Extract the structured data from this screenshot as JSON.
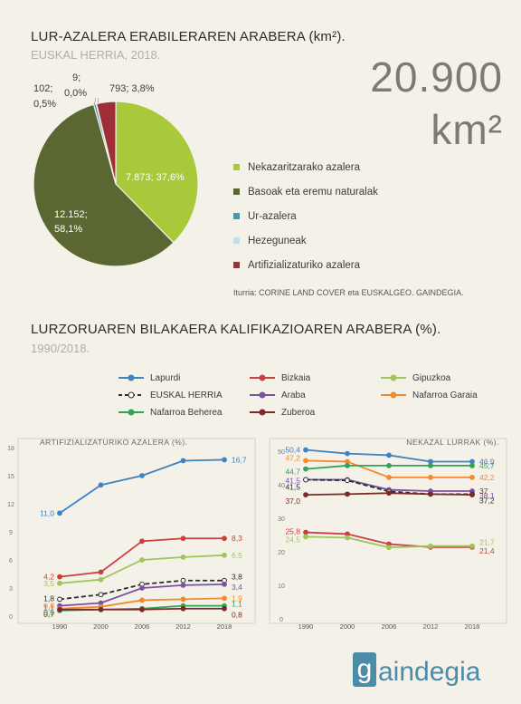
{
  "header": {
    "title": "LUR-AZALERA ERABILERAREN ARABERA (km²).",
    "subtitle": "EUSKAL HERRIA, 2018.",
    "total_number": "20.900",
    "total_unit": "km²"
  },
  "pie_labels": {
    "nek": "7.873; 37,6%",
    "bas_1": "12.152;",
    "bas_2": "58,1%",
    "ur_1": "102;",
    "ur_2": "0,5%",
    "hez_1": "9;",
    "hez_2": "0,0%",
    "art": "793; 3,8%"
  },
  "source": "Iturria: CORINE LAND COVER eta EUSKALGEO. GAINDEGIA.",
  "section2": {
    "title": "LURZORUAREN BILAKAERA KALIFIKAZIOAREN ARABERA (%).",
    "subtitle": "1990/2018."
  },
  "legend2": [
    {
      "name": "Lapurdi",
      "color": "#3f83c2",
      "dashed": false
    },
    {
      "name": "Bizkaia",
      "color": "#c9403e",
      "dashed": false
    },
    {
      "name": "Gipuzkoa",
      "color": "#9fc55b",
      "dashed": false
    },
    {
      "name": "EUSKAL HERRIA",
      "color": "#2c2c2c",
      "dashed": true
    },
    {
      "name": "Araba",
      "color": "#7e50a0",
      "dashed": false
    },
    {
      "name": "Nafarroa Garaia",
      "color": "#f08a2c",
      "dashed": false
    },
    {
      "name": "Nafarroa Beherea",
      "color": "#33a355",
      "dashed": false
    },
    {
      "name": "Zuberoa",
      "color": "#7a2a28",
      "dashed": false
    }
  ],
  "logo": {
    "letter": "g",
    "text": "aindegia"
  },
  "chart_data": [
    {
      "type": "pie",
      "categories": [
        "Nekazaritzarako azalera",
        "Basoak eta eremu naturalak",
        "Ur-azalera",
        "Hezeguneak",
        "Artifizializaturiko azalera"
      ],
      "values": [
        7873,
        12152,
        102,
        9,
        793
      ],
      "percent": [
        37.6,
        58.1,
        0.5,
        0.0,
        3.8
      ],
      "colors": [
        "#a8c93a",
        "#5a6732",
        "#4a98b0",
        "#bfe0e6",
        "#9e2f37"
      ],
      "legend": "right"
    },
    {
      "type": "line",
      "title": "ARTIFIZIALIZATURIKO AZALERA (%).",
      "x": [
        1990,
        2000,
        2006,
        2012,
        2018
      ],
      "ylim": [
        0,
        18
      ],
      "yticks": [
        0,
        3,
        6,
        9,
        12,
        15,
        18
      ],
      "grid": false,
      "series": [
        {
          "name": "Lapurdi",
          "values": [
            11.0,
            14.0,
            15.0,
            16.6,
            16.7
          ],
          "start_label": "11,0",
          "end_label": "16,7"
        },
        {
          "name": "Bizkaia",
          "values": [
            4.2,
            4.7,
            8.0,
            8.3,
            8.3
          ],
          "start_label": "4,2",
          "end_label": "8,3"
        },
        {
          "name": "Gipuzkoa",
          "values": [
            3.5,
            3.9,
            6.0,
            6.3,
            6.5
          ],
          "start_label": "3,5",
          "end_label": "6,5"
        },
        {
          "name": "EUSKAL HERRIA",
          "values": [
            1.8,
            2.3,
            3.4,
            3.8,
            3.8
          ],
          "start_label": "1,8",
          "end_label": "3,8"
        },
        {
          "name": "Araba",
          "values": [
            1.1,
            1.4,
            3.0,
            3.3,
            3.4
          ],
          "start_label": "1,1",
          "end_label": "3,4"
        },
        {
          "name": "Nafarroa Garaia",
          "values": [
            0.8,
            1.0,
            1.7,
            1.8,
            1.9
          ],
          "start_label": "0,8",
          "end_label": "1,9"
        },
        {
          "name": "Nafarroa Beherea",
          "values": [
            0.6,
            0.7,
            0.8,
            1.1,
            1.1
          ],
          "start_label": "0,6",
          "end_label": "1,1"
        },
        {
          "name": "Zuberoa",
          "values": [
            0.7,
            0.7,
            0.7,
            0.8,
            0.8
          ],
          "start_label": "0,7",
          "end_label": "0,8"
        }
      ]
    },
    {
      "type": "line",
      "title": "NEKAZAL LURRAK (%).",
      "x": [
        1990,
        2000,
        2006,
        2012,
        2018
      ],
      "ylim": [
        0,
        50
      ],
      "yticks": [
        0,
        10,
        20,
        30,
        40,
        50
      ],
      "grid": false,
      "series": [
        {
          "name": "Lapurdi",
          "values": [
            50.4,
            49.3,
            48.8,
            46.9,
            46.9
          ],
          "start_label": "50,4",
          "end_label": "46,9"
        },
        {
          "name": "Nafarroa Garaia",
          "values": [
            47.2,
            46.9,
            42.2,
            42.2,
            42.2
          ],
          "start_label": "47,2",
          "end_label": "42,2"
        },
        {
          "name": "Nafarroa Beherea",
          "values": [
            44.7,
            45.7,
            45.7,
            45.7,
            45.7
          ],
          "start_label": "44,7",
          "end_label": "45,7"
        },
        {
          "name": "Araba",
          "values": [
            41.5,
            41.5,
            38.5,
            38.1,
            38.1
          ],
          "start_label": "41,5",
          "end_label": "38,1"
        },
        {
          "name": "EUSKAL HERRIA",
          "values": [
            41.5,
            41.3,
            38.0,
            37.2,
            37.2
          ],
          "start_label": "41,5",
          "end_label": "37,2"
        },
        {
          "name": "Zuberoa",
          "values": [
            37.0,
            37.2,
            37.5,
            37.2,
            37.0
          ],
          "start_label": "37,0",
          "end_label": "37"
        },
        {
          "name": "Bizkaia",
          "values": [
            25.8,
            25.3,
            22.3,
            21.4,
            21.4
          ],
          "start_label": "25,8",
          "end_label": "21,4"
        },
        {
          "name": "Gipuzkoa",
          "values": [
            24.5,
            24.2,
            21.3,
            21.7,
            21.7
          ],
          "start_label": "24,5",
          "end_label": "21,7"
        }
      ]
    }
  ]
}
